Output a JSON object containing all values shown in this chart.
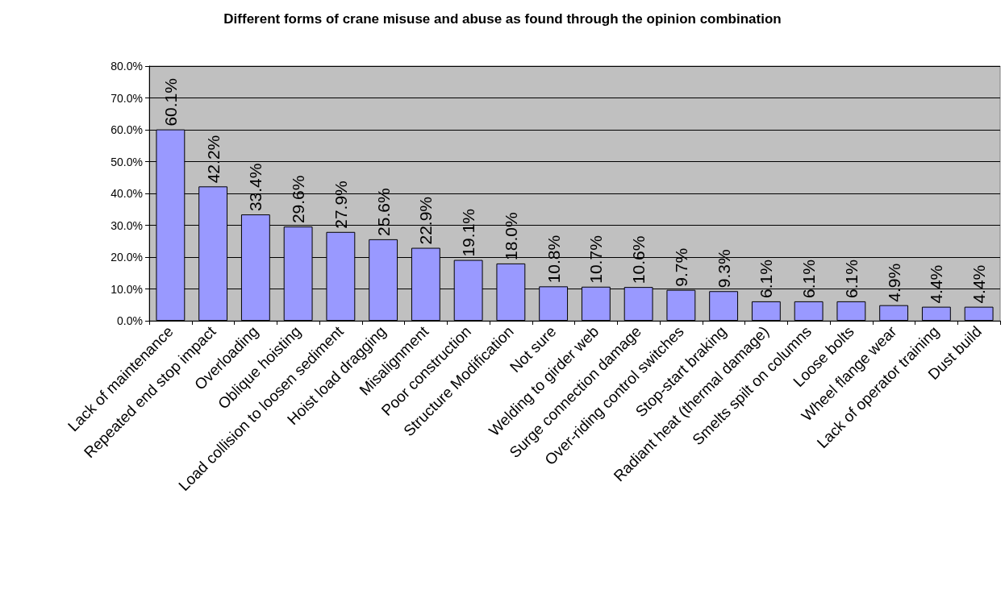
{
  "chart_data": {
    "type": "bar",
    "title": "Different forms of crane misuse and abuse as found through the opinion combination",
    "categories": [
      "Lack of maintenance",
      "Repeated end stop impact",
      "Overloading",
      "Oblique hoisting",
      "Load collision to loosen sediment",
      "Hoist load dragging",
      "Misalignment",
      "Poor construction",
      "Structure Modification",
      "Not sure",
      "Welding to girder web",
      "Surge connection damage",
      "Over-riding control switches",
      "Stop-start braking",
      "Radiant heat (thermal damage)",
      "Smelts spilt on columns",
      "Loose bolts",
      "Wheel flange wear",
      "Lack of operator training",
      "Dust build"
    ],
    "values": [
      60.1,
      42.2,
      33.4,
      29.6,
      27.9,
      25.6,
      22.9,
      19.1,
      18.0,
      10.8,
      10.7,
      10.6,
      9.7,
      9.3,
      6.1,
      6.1,
      6.1,
      4.9,
      4.4,
      4.4
    ],
    "value_labels": [
      "60.1%",
      "42.2%",
      "33.4%",
      "29.6%",
      "27.9%",
      "25.6%",
      "22.9%",
      "19.1%",
      "18.0%",
      "10.8%",
      "10.7%",
      "10.6%",
      "9.7%",
      "9.3%",
      "6.1%",
      "6.1%",
      "6.1%",
      "4.9%",
      "4.4%",
      "4.4%"
    ],
    "color": "#9999ff",
    "ylim": [
      0,
      80
    ],
    "yticks": [
      {
        "value": 0,
        "label": "0.0%"
      },
      {
        "value": 10,
        "label": "10.0%"
      },
      {
        "value": 20,
        "label": "20.0%"
      },
      {
        "value": 30,
        "label": "30.0%"
      },
      {
        "value": 40,
        "label": "40.0%"
      },
      {
        "value": 50,
        "label": "50.0%"
      },
      {
        "value": 60,
        "label": "60.0%"
      },
      {
        "value": 70,
        "label": "70.0%"
      },
      {
        "value": 80,
        "label": "80.0%"
      }
    ],
    "grid": "y"
  }
}
